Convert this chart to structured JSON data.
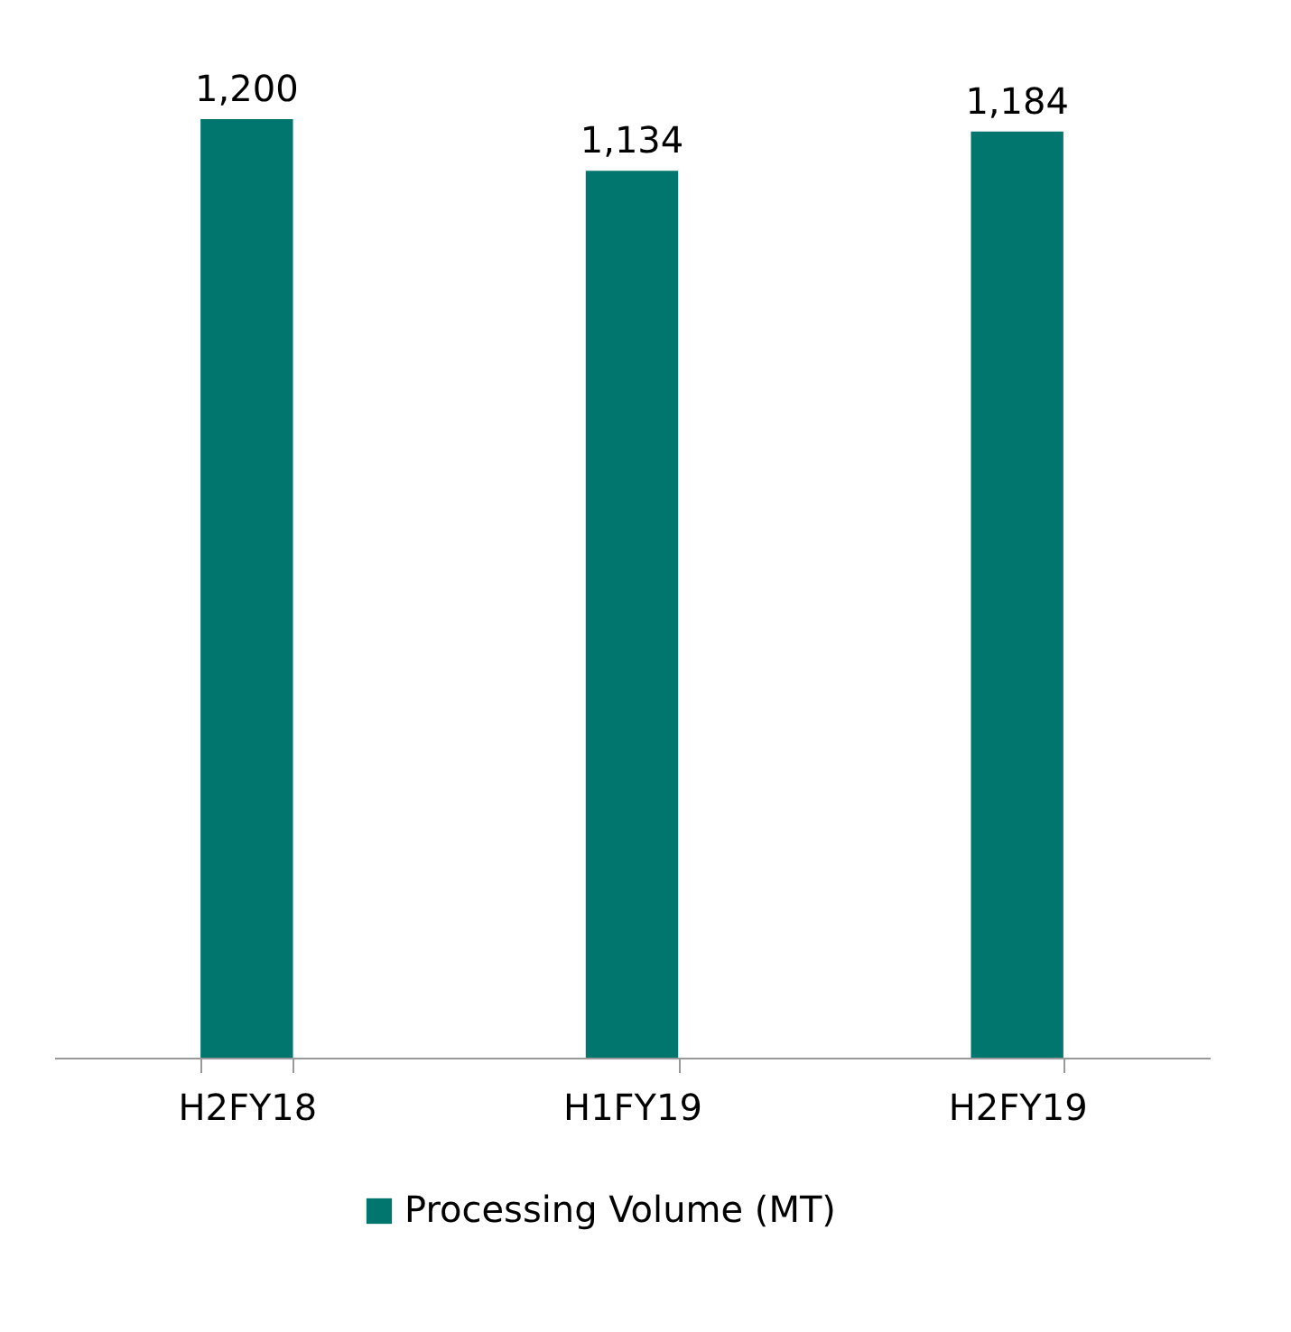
{
  "chart_data": {
    "type": "bar",
    "categories": [
      "H2FY18",
      "H1FY19",
      "H2FY19"
    ],
    "series": [
      {
        "name": "Processing Volume (MT)",
        "color": "#00766e",
        "values": [
          1200,
          1134,
          1184
        ],
        "value_labels": [
          "1,200",
          "1,134",
          "1,184"
        ]
      }
    ],
    "grid": false,
    "legend": "bottom"
  }
}
